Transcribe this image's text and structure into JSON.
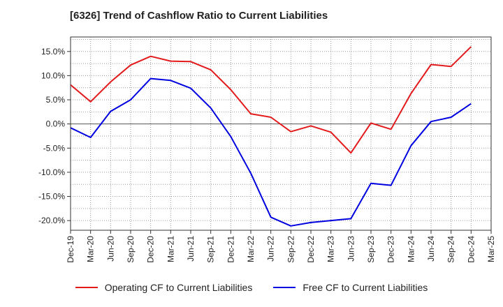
{
  "title": "[6326]  Trend of Cashflow Ratio to Current Liabilities",
  "chart_data": {
    "type": "line",
    "title": "[6326]  Trend of Cashflow Ratio to Current Liabilities",
    "xlabel": "",
    "ylabel": "",
    "categories": [
      "Dec-19",
      "Mar-20",
      "Jun-20",
      "Sep-20",
      "Dec-20",
      "Mar-21",
      "Jun-21",
      "Sep-21",
      "Dec-21",
      "Mar-22",
      "Jun-22",
      "Sep-22",
      "Dec-22",
      "Mar-23",
      "Jun-23",
      "Sep-23",
      "Dec-23",
      "Mar-24",
      "Jun-24",
      "Sep-24",
      "Dec-24",
      "Mar-25"
    ],
    "ylim": [
      -22,
      18
    ],
    "yticks": [
      -20,
      -15,
      -10,
      -5,
      0,
      5,
      10,
      15
    ],
    "ytick_labels": [
      "-20.0%",
      "-15.0%",
      "-10.0%",
      "-5.0%",
      "0.0%",
      "5.0%",
      "10.0%",
      "15.0%"
    ],
    "grid": true,
    "legend_position": "bottom",
    "series": [
      {
        "name": "Operating CF to Current Liabilities",
        "color": "#e31a1c",
        "values": [
          8.1,
          4.6,
          8.7,
          12.2,
          14.0,
          13.0,
          12.9,
          11.2,
          7.1,
          2.1,
          1.4,
          -1.6,
          -0.4,
          -1.7,
          -6.0,
          0.2,
          -1.1,
          6.3,
          12.3,
          11.9,
          16.0,
          null
        ]
      },
      {
        "name": "Free CF to Current Liabilities",
        "color": "#0000e0",
        "values": [
          -0.8,
          -2.8,
          2.6,
          5.0,
          9.4,
          9.0,
          7.4,
          3.3,
          -2.6,
          -10.2,
          -19.3,
          -21.1,
          -20.4,
          -20.0,
          -19.6,
          -12.3,
          -12.7,
          -4.5,
          0.5,
          1.4,
          4.2,
          null
        ]
      }
    ]
  }
}
